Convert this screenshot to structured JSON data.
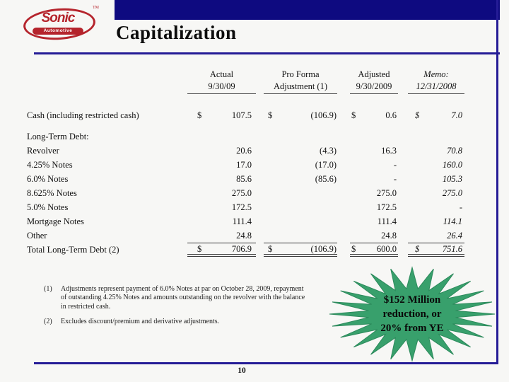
{
  "slide": {
    "title": "Capitalization",
    "page_number": "10",
    "logo": {
      "brand": "Sonic",
      "sub": "Automotive",
      "tm": "TM"
    },
    "colors": {
      "navy_bar": "#0e0a80",
      "rule_blue": "#251c96",
      "logo_red": "#b5242c",
      "star_green": "#38a06c"
    }
  },
  "table": {
    "columns": [
      {
        "line1": "Actual",
        "line2": "9/30/09"
      },
      {
        "line1": "Pro Forma",
        "line2": "Adjustment (1)"
      },
      {
        "line1": "Adjusted",
        "line2": "9/30/2009"
      },
      {
        "line1": "Memo:",
        "line2": "12/31/2008"
      }
    ],
    "rows": [
      {
        "kind": "cash",
        "label": "Cash (including restricted cash)",
        "d1": "$",
        "v1": "107.5",
        "d2": "$",
        "v2": "(106.9)",
        "d3": "$",
        "v3": "0.6",
        "d4": "$",
        "v4": "7.0"
      },
      {
        "kind": "section",
        "label": "Long-Term Debt:",
        "d1": "",
        "v1": "",
        "d2": "",
        "v2": "",
        "d3": "",
        "v3": "",
        "d4": "",
        "v4": ""
      },
      {
        "kind": "item",
        "label": "Revolver",
        "d1": "",
        "v1": "20.6",
        "d2": "",
        "v2": "(4.3)",
        "d3": "",
        "v3": "16.3",
        "d4": "",
        "v4": "70.8"
      },
      {
        "kind": "item",
        "label": "4.25% Notes",
        "d1": "",
        "v1": "17.0",
        "d2": "",
        "v2": "(17.0)",
        "d3": "",
        "v3": "-",
        "d4": "",
        "v4": "160.0"
      },
      {
        "kind": "item",
        "label": "6.0% Notes",
        "d1": "",
        "v1": "85.6",
        "d2": "",
        "v2": "(85.6)",
        "d3": "",
        "v3": "-",
        "d4": "",
        "v4": "105.3"
      },
      {
        "kind": "item",
        "label": "8.625% Notes",
        "d1": "",
        "v1": "275.0",
        "d2": "",
        "v2": "",
        "d3": "",
        "v3": "275.0",
        "d4": "",
        "v4": "275.0"
      },
      {
        "kind": "item",
        "label": "5.0% Notes",
        "d1": "",
        "v1": "172.5",
        "d2": "",
        "v2": "",
        "d3": "",
        "v3": "172.5",
        "d4": "",
        "v4": "-"
      },
      {
        "kind": "item",
        "label": "Mortgage Notes",
        "d1": "",
        "v1": "111.4",
        "d2": "",
        "v2": "",
        "d3": "",
        "v3": "111.4",
        "d4": "",
        "v4": "114.1"
      },
      {
        "kind": "item",
        "label": "Other",
        "d1": "",
        "v1": "24.8",
        "d2": "",
        "v2": "",
        "d3": "",
        "v3": "24.8",
        "d4": "",
        "v4": "26.4"
      },
      {
        "kind": "total",
        "label": "Total Long-Term Debt (2)",
        "d1": "$",
        "v1": "706.9",
        "d2": "$",
        "v2": "(106.9)",
        "d3": "$",
        "v3": "600.0",
        "d4": "$",
        "v4": "751.6"
      }
    ]
  },
  "footnotes": [
    {
      "marker": "(1)",
      "text": "Adjustments represent payment of 6.0% Notes at par on October 28, 2009, repayment of outstanding 4.25% Notes and amounts outstanding on the revolver with the balance in restricted cash."
    },
    {
      "marker": "(2)",
      "text": "Excludes discount/premium and derivative adjustments."
    }
  ],
  "starburst": {
    "lines": [
      "$152 Million",
      "reduction, or",
      "20% from YE"
    ]
  }
}
